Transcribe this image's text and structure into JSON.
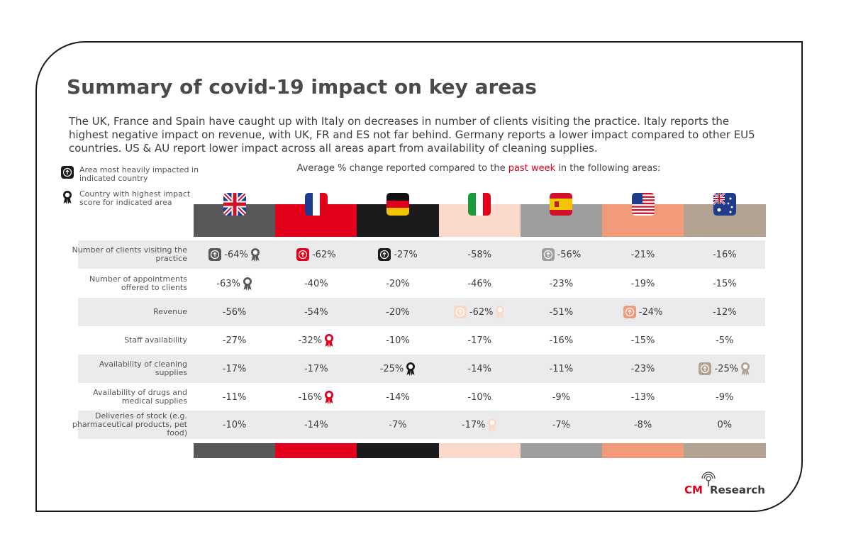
{
  "title": "Summary of covid-19 impact on key areas",
  "intro": "The UK, France and Spain have caught up with Italy on decreases in number of clients visiting the practice. Italy reports the highest negative impact on revenue, with UK, FR and ES not far behind. Germany reports a lower impact compared to other EU5 countries. US & AU report lower impact across all areas apart from availability of cleaning supplies.",
  "legend": {
    "area_icon_label": "Area most heavily impacted in indicated country",
    "country_icon_label": "Country with highest impact score for indicated area"
  },
  "subtitle": {
    "before": "Average % change reported compared to the ",
    "highlight": "past week",
    "after": " in the following areas:"
  },
  "colors": {
    "accent_red": "#e2001a"
  },
  "chart_data": {
    "type": "table",
    "columns": [
      {
        "flag": "uk-flag-icon",
        "color": "#58585a",
        "text_color": "#ffffff"
      },
      {
        "flag": "france-flag-icon",
        "color": "#e2001a",
        "text_color": "#ffffff"
      },
      {
        "flag": "germany-flag-icon",
        "color": "#1b1a1c",
        "text_color": "#ffffff"
      },
      {
        "flag": "italy-flag-icon",
        "color": "#fad9cb",
        "text_color": "#3c3c3c"
      },
      {
        "flag": "spain-flag-icon",
        "color": "#9d9e9f",
        "text_color": "#ffffff"
      },
      {
        "flag": "usa-flag-icon",
        "color": "#f29b7b",
        "text_color": "#ffffff"
      },
      {
        "flag": "australia-flag-icon",
        "color": "#b1a291",
        "text_color": "#ffffff"
      }
    ],
    "rows": [
      {
        "label": "Number of clients visiting the practice",
        "values": [
          -64,
          -62,
          -27,
          -58,
          -56,
          -21,
          -16
        ],
        "display": [
          "-64%",
          "-62%",
          "-27%",
          "-58%",
          "-56%",
          "-21%",
          "-16%"
        ],
        "most_impacted_area": [
          true,
          true,
          true,
          false,
          true,
          false,
          false
        ],
        "highest_country": [
          true,
          false,
          false,
          false,
          false,
          false,
          false
        ]
      },
      {
        "label": "Number of appointments offered to clients",
        "values": [
          -63,
          -40,
          -20,
          -46,
          -23,
          -19,
          -15
        ],
        "display": [
          "-63%",
          "-40%",
          "-20%",
          "-46%",
          "-23%",
          "-19%",
          "-15%"
        ],
        "most_impacted_area": [
          false,
          false,
          false,
          false,
          false,
          false,
          false
        ],
        "highest_country": [
          true,
          false,
          false,
          false,
          false,
          false,
          false
        ]
      },
      {
        "label": "Revenue",
        "values": [
          -56,
          -54,
          -20,
          -62,
          -51,
          -24,
          -12
        ],
        "display": [
          "-56%",
          "-54%",
          "-20%",
          "-62%",
          "-51%",
          "-24%",
          "-12%"
        ],
        "most_impacted_area": [
          false,
          false,
          false,
          true,
          false,
          true,
          false
        ],
        "highest_country": [
          false,
          false,
          false,
          true,
          false,
          false,
          false
        ]
      },
      {
        "label": "Staff availability",
        "values": [
          -27,
          -32,
          -10,
          -17,
          -16,
          -15,
          -5
        ],
        "display": [
          "-27%",
          "-32%",
          "-10%",
          "-17%",
          "-16%",
          "-15%",
          "-5%"
        ],
        "most_impacted_area": [
          false,
          false,
          false,
          false,
          false,
          false,
          false
        ],
        "highest_country": [
          false,
          true,
          false,
          false,
          false,
          false,
          false
        ]
      },
      {
        "label": "Availability of cleaning supplies",
        "values": [
          -17,
          -17,
          -25,
          -14,
          -11,
          -23,
          -25
        ],
        "display": [
          "-17%",
          "-17%",
          "-25%",
          "-14%",
          "-11%",
          "-23%",
          "-25%"
        ],
        "most_impacted_area": [
          false,
          false,
          false,
          false,
          false,
          false,
          true
        ],
        "highest_country": [
          false,
          false,
          true,
          false,
          false,
          false,
          true
        ]
      },
      {
        "label": "Availability of drugs and medical supplies",
        "values": [
          -11,
          -16,
          -14,
          -10,
          -9,
          -13,
          -9
        ],
        "display": [
          "-11%",
          "-16%",
          "-14%",
          "-10%",
          "-9%",
          "-13%",
          "-9%"
        ],
        "most_impacted_area": [
          false,
          false,
          false,
          false,
          false,
          false,
          false
        ],
        "highest_country": [
          false,
          true,
          false,
          false,
          false,
          false,
          false
        ]
      },
      {
        "label": "Deliveries of stock (e.g. pharmaceutical products, pet food)",
        "values": [
          -10,
          -14,
          -7,
          -17,
          -7,
          -8,
          0
        ],
        "display": [
          "-10%",
          "-14%",
          "-7%",
          "-17%",
          "-7%",
          "-8%",
          "0%"
        ],
        "most_impacted_area": [
          false,
          false,
          false,
          false,
          false,
          false,
          false
        ],
        "highest_country": [
          false,
          false,
          false,
          true,
          false,
          false,
          false
        ]
      }
    ]
  },
  "logo": {
    "cm": "CM",
    "research": "Research"
  }
}
